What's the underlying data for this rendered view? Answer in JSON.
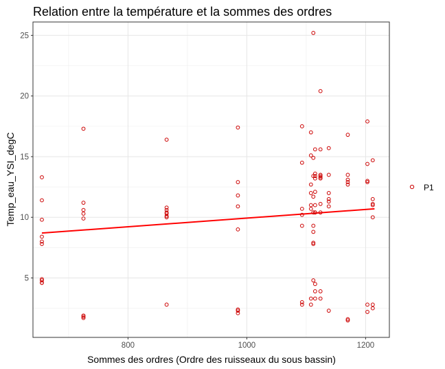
{
  "chart_data": {
    "type": "scatter",
    "title": "Relation entre la température et la sommes des ordres",
    "xlabel": "Sommes des ordres (Ordre des ruisseaux du sous bassin)",
    "ylabel": "Temp_eau_YSI_degC",
    "xlim": [
      640,
      1240
    ],
    "ylim": [
      0.1,
      26.1
    ],
    "xticks": [
      800,
      1000,
      1200
    ],
    "yticks": [
      5,
      10,
      15,
      20,
      25
    ],
    "grid": true,
    "legend_position": "right",
    "series": [
      {
        "name": "P1",
        "color": "#cc0000",
        "marker": "open-circle",
        "x": [
          655,
          655,
          655,
          655,
          655,
          655,
          655,
          655,
          655,
          655,
          725,
          725,
          725,
          725,
          725,
          725,
          725,
          725,
          865,
          865,
          865,
          865,
          865,
          865,
          865,
          865,
          985,
          985,
          985,
          985,
          985,
          985,
          985,
          985,
          1093,
          1093,
          1093,
          1093,
          1093,
          1093,
          1093,
          1108,
          1108,
          1108,
          1108,
          1108,
          1108,
          1108,
          1108,
          1112,
          1112,
          1112,
          1112,
          1112,
          1112,
          1112,
          1112,
          1112,
          1112,
          1115,
          1115,
          1115,
          1115,
          1115,
          1115,
          1115,
          1115,
          1115,
          1115,
          1115,
          1124,
          1124,
          1124,
          1124,
          1124,
          1124,
          1124,
          1124,
          1124,
          1124,
          1138,
          1138,
          1138,
          1138,
          1138,
          1138,
          1138,
          1170,
          1170,
          1170,
          1170,
          1170,
          1170,
          1170,
          1203,
          1203,
          1203,
          1203,
          1203,
          1203,
          1212,
          1212,
          1212,
          1212,
          1212,
          1212,
          1212
        ],
        "y": [
          13.3,
          11.4,
          9.8,
          8.4,
          8.0,
          7.8,
          4.9,
          4.6,
          4.6,
          4.8,
          17.3,
          11.2,
          10.6,
          10.3,
          9.9,
          1.9,
          1.8,
          1.7,
          16.4,
          10.8,
          10.6,
          10.4,
          10.3,
          10.1,
          10.0,
          2.8,
          17.4,
          12.9,
          11.8,
          10.9,
          9.0,
          2.4,
          2.3,
          2.1,
          17.5,
          14.5,
          10.7,
          10.2,
          9.3,
          3.0,
          2.8,
          17.0,
          15.1,
          12.0,
          11.0,
          10.7,
          3.3,
          2.8,
          12.7,
          25.2,
          14.9,
          13.4,
          11.7,
          10.4,
          9.3,
          8.8,
          7.9,
          7.8,
          4.8,
          4.5,
          15.6,
          13.2,
          13.4,
          10.4,
          10.4,
          11.0,
          3.3,
          3.9,
          13.6,
          12.1,
          20.4,
          15.6,
          13.5,
          13.2,
          11.1,
          10.4,
          3.3,
          3.9,
          13.4,
          13.3,
          15.7,
          13.5,
          12.0,
          11.5,
          11.3,
          10.9,
          2.3,
          16.8,
          13.5,
          12.9,
          12.7,
          1.6,
          1.5,
          13.1,
          17.9,
          14.4,
          13.0,
          12.9,
          2.8,
          2.2,
          14.7,
          11.5,
          11.1,
          10.0,
          2.8,
          2.5,
          11.0
        ]
      },
      {
        "name": "",
        "type": "line",
        "color": "#ff0000",
        "x": [
          655,
          1215
        ],
        "y": [
          8.7,
          10.7
        ]
      }
    ]
  }
}
